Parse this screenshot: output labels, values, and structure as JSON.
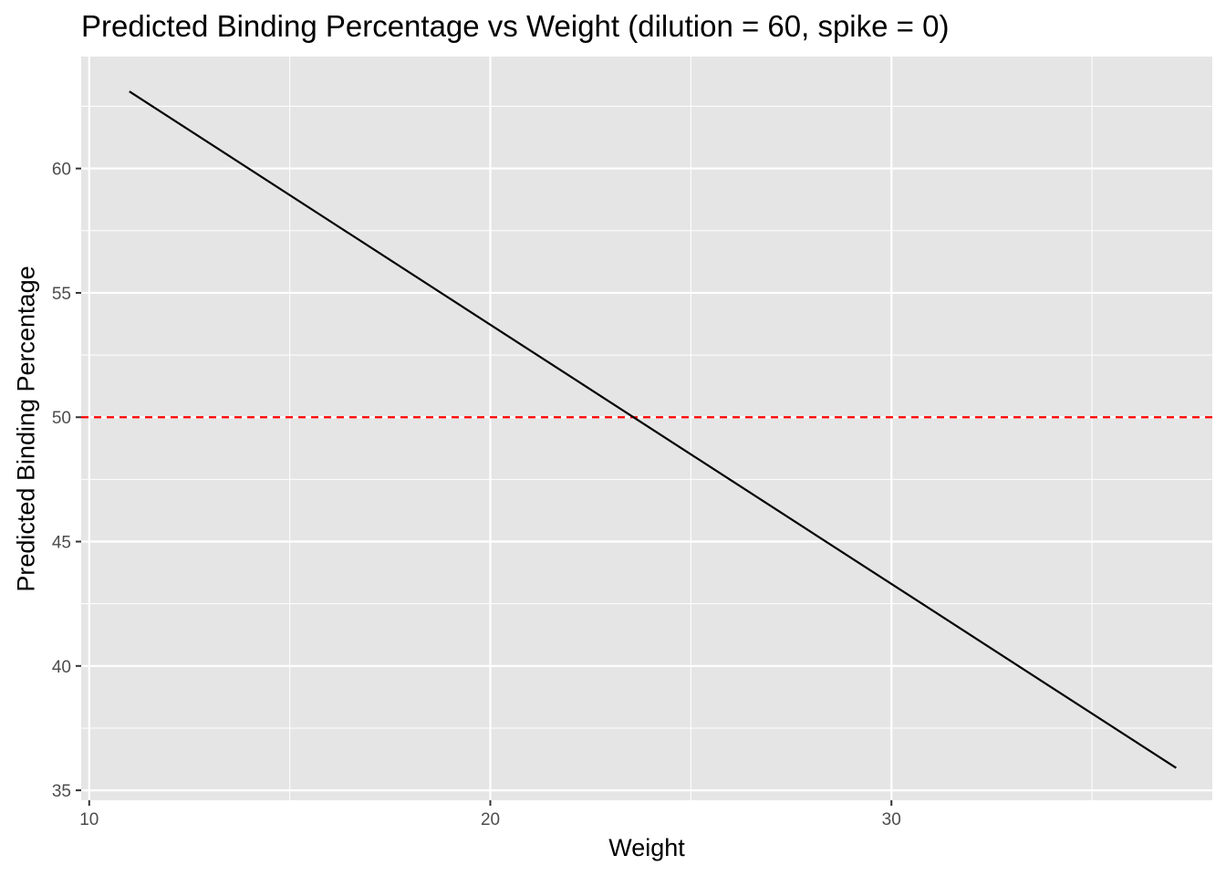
{
  "chart_data": {
    "type": "line",
    "title": "Predicted Binding Percentage vs Weight (dilution = 60, spike = 0)",
    "xlabel": "Weight",
    "ylabel": "Predicted Binding Percentage",
    "xlim": [
      9.8,
      38.0
    ],
    "ylim": [
      34.6,
      64.5
    ],
    "x_ticks": [
      10,
      20,
      30
    ],
    "y_ticks": [
      35,
      40,
      45,
      50,
      55,
      60
    ],
    "grid": true,
    "series": [
      {
        "x": [
          11,
          37.1
        ],
        "y": [
          63.1,
          35.9
        ],
        "color": "#000000",
        "style": "solid"
      }
    ],
    "reference_lines": [
      {
        "orientation": "horizontal",
        "y": 50,
        "color": "#ff0000",
        "style": "dashed"
      }
    ],
    "panel_background": "#e5e5e5",
    "grid_color": "#ffffff"
  }
}
